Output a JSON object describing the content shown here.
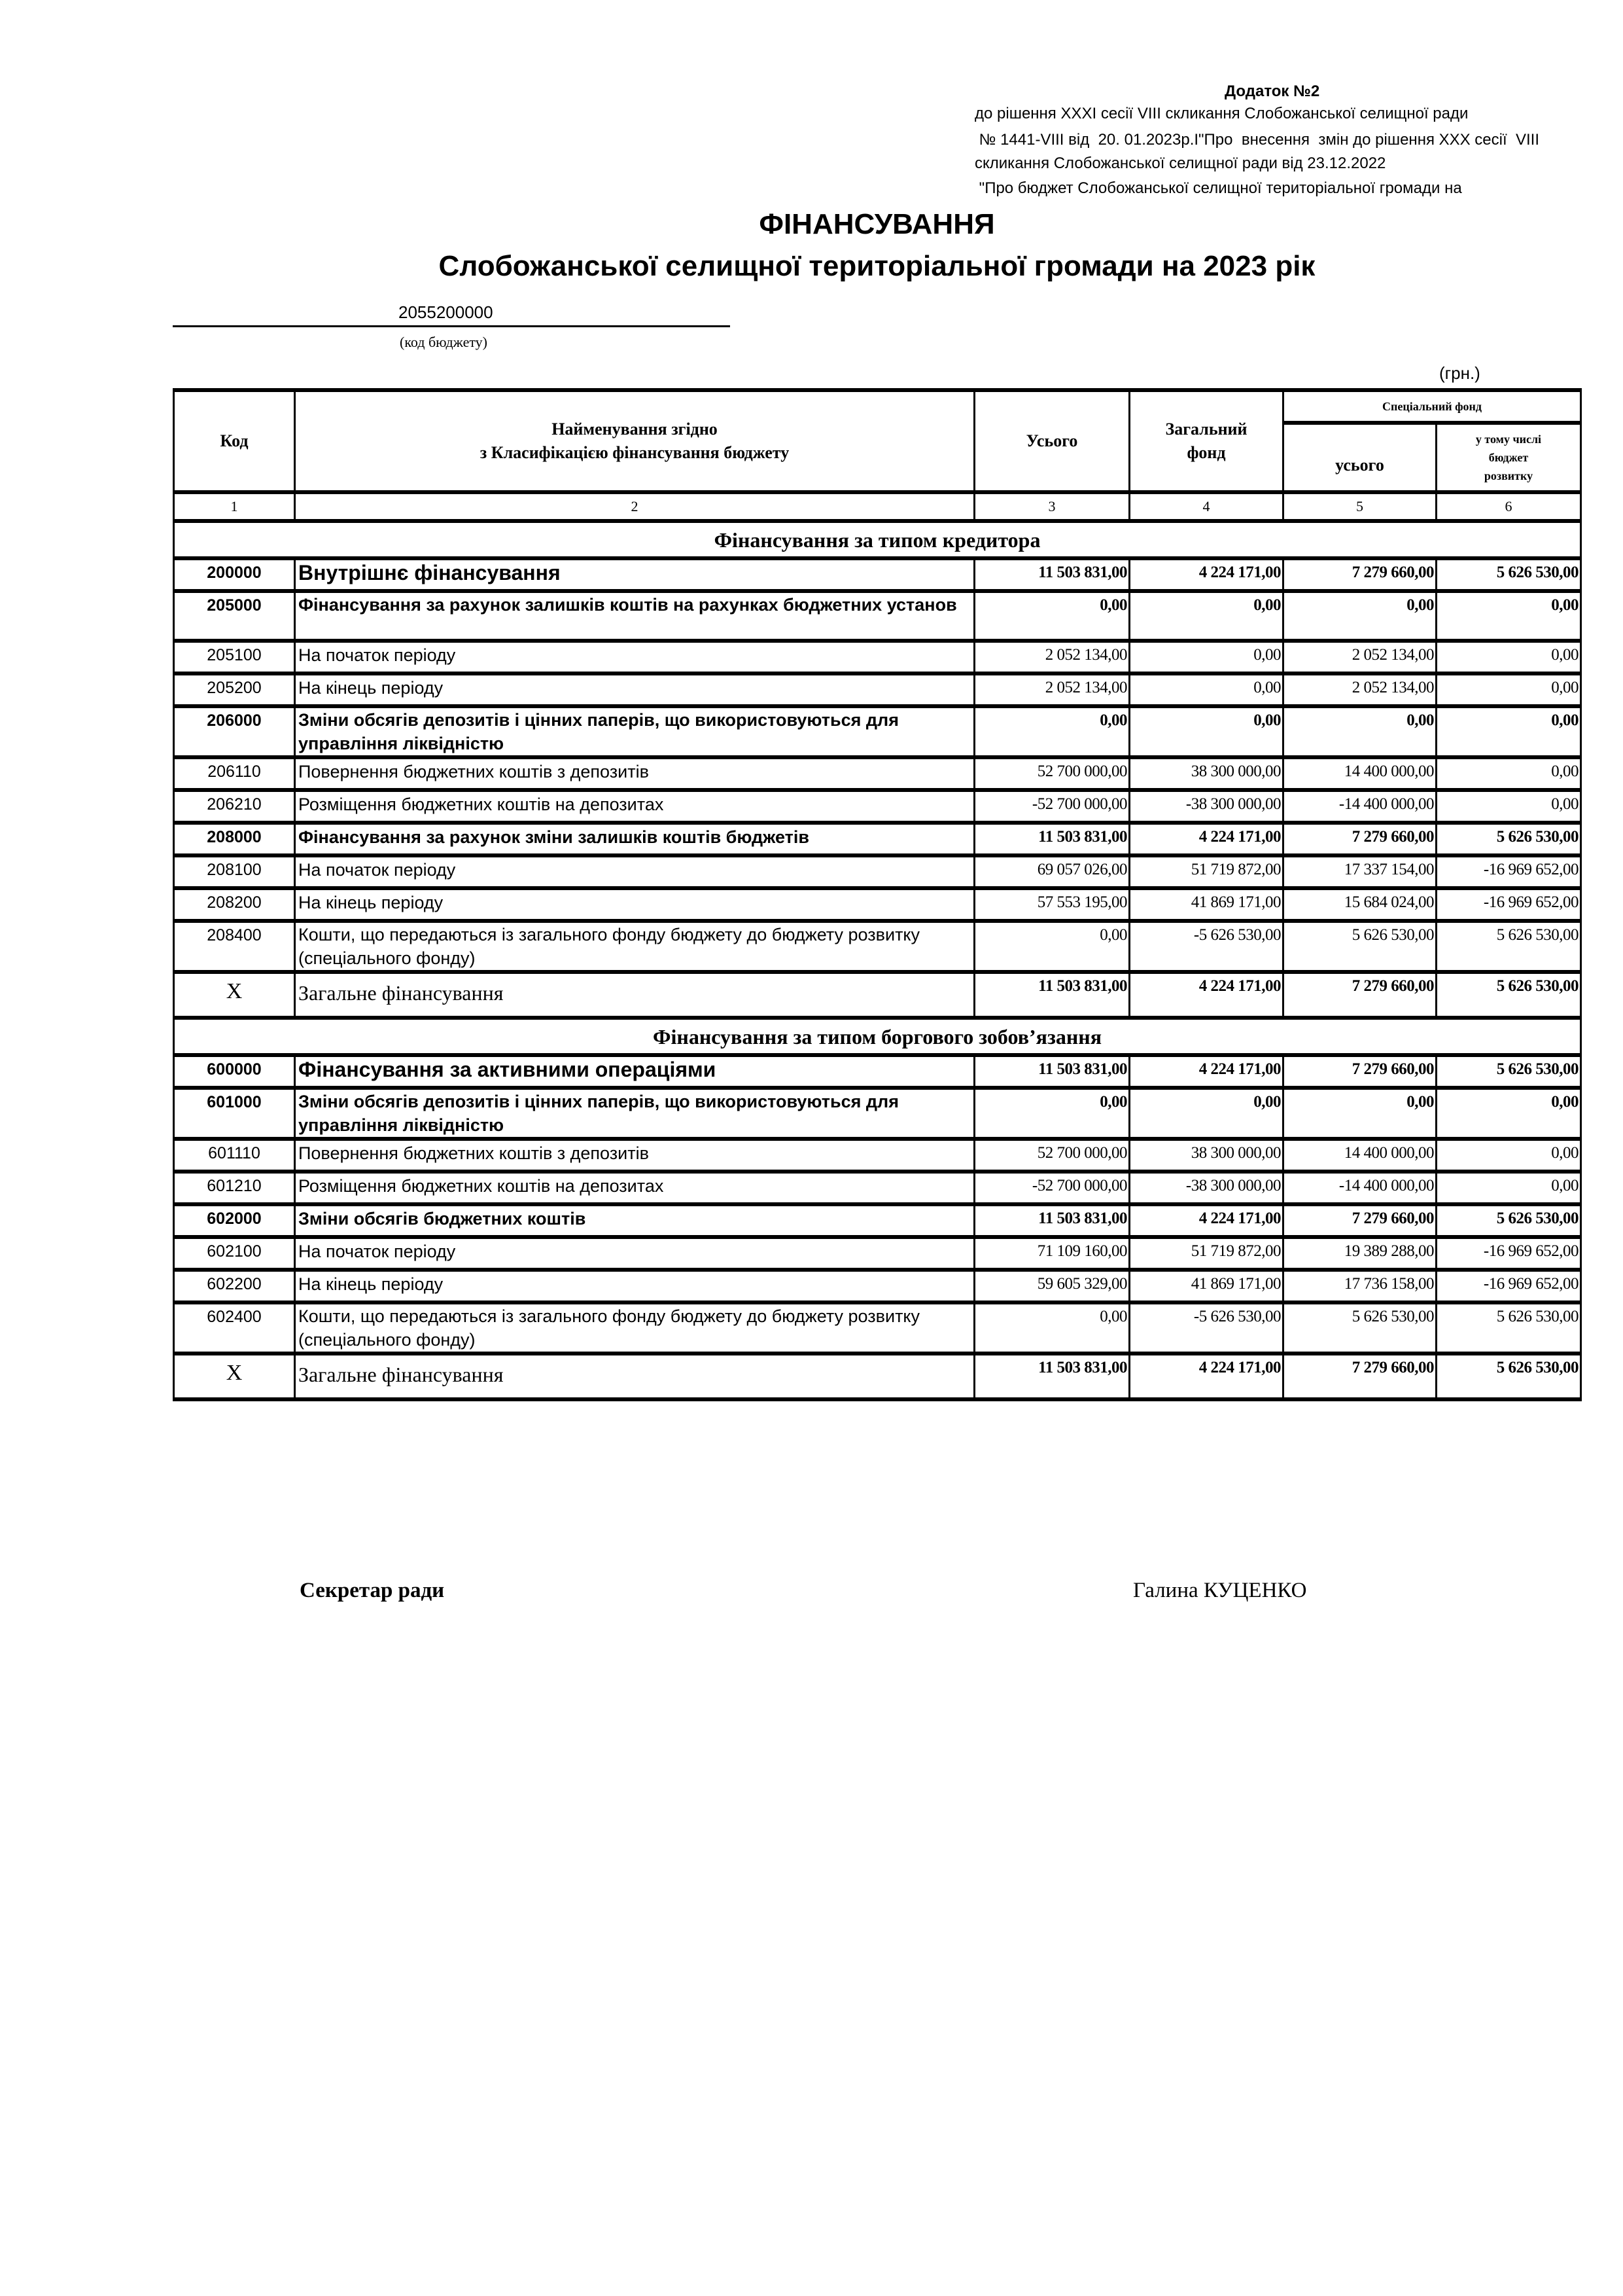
{
  "appendix": {
    "title": "Додаток №2",
    "lines": [
      "до рішення XXXI  сесії VIII скликання    Слобожанської селищної ради",
      " № 1441-VIII від  20. 01.2023р.І\"Про  внесення  змін до рішення XXX сесії  VIII",
      "скликання Слобожанської селищної ради від 23.12.2022",
      " \"Про бюджет Слобожанської селищної територіальної громади на"
    ]
  },
  "title": "ФІНАНСУВАННЯ",
  "subtitle": "Слобожанської селищної територіальної громади на 2023 рік",
  "budget_code": "2055200000",
  "budget_code_label": "(код бюджету)",
  "currency": "(грн.)",
  "table": {
    "headers": {
      "code": "Код",
      "name_line1": "Найменування згідно",
      "name_line2": "з Класифікацією фінансування бюджету",
      "total": "Усього",
      "general_line1": "Загальний",
      "general_line2": "фонд",
      "special": "Спеціальний фонд",
      "special_total": "усього",
      "dev_line1": "у тому числі",
      "dev_line2": "бюджет",
      "dev_line3": "розвитку"
    },
    "column_numbers": [
      "1",
      "2",
      "3",
      "4",
      "5",
      "6"
    ],
    "sections": [
      {
        "title": "Фінансування за типом кредитора",
        "rows": [
          {
            "code": "200000",
            "name": "Внутрішнє фінансування",
            "values": [
              "11 503 831,00",
              "4 224 171,00",
              "7 279 660,00",
              "5 626 530,00"
            ],
            "bold": true,
            "big": true
          },
          {
            "code": "205000",
            "name": "Фінансування за рахунок залишків коштів на рахунках бюджетних установ",
            "values": [
              "0,00",
              "0,00",
              "0,00",
              "0,00"
            ],
            "bold": true
          },
          {
            "code": "205100",
            "name": "На початок періоду",
            "values": [
              "2 052 134,00",
              "0,00",
              "2 052 134,00",
              "0,00"
            ]
          },
          {
            "code": "205200",
            "name": "На кінець періоду",
            "values": [
              "2 052 134,00",
              "0,00",
              "2 052 134,00",
              "0,00"
            ]
          },
          {
            "code": "206000",
            "name": "Зміни обсягів депозитів і цінних паперів, що використовуються для управління ліквідністю",
            "values": [
              "0,00",
              "0,00",
              "0,00",
              "0,00"
            ],
            "bold": true
          },
          {
            "code": "206110",
            "name": "Повернення бюджетних коштів з депозитів",
            "values": [
              "52 700 000,00",
              "38 300 000,00",
              "14 400 000,00",
              "0,00"
            ]
          },
          {
            "code": "206210",
            "name": "Розміщення бюджетних коштів на депозитах",
            "values": [
              "-52 700 000,00",
              "-38 300 000,00",
              "-14 400 000,00",
              "0,00"
            ]
          },
          {
            "code": "208000",
            "name": "Фінансування за рахунок зміни залишків коштів бюджетів",
            "values": [
              "11 503 831,00",
              "4 224 171,00",
              "7 279 660,00",
              "5 626 530,00"
            ],
            "bold": true
          },
          {
            "code": "208100",
            "name": "На початок періоду",
            "values": [
              "69 057 026,00",
              "51 719 872,00",
              "17 337 154,00",
              "-16 969 652,00"
            ]
          },
          {
            "code": "208200",
            "name": "На кінець періоду",
            "values": [
              "57 553 195,00",
              "41 869 171,00",
              "15 684 024,00",
              "-16 969 652,00"
            ]
          },
          {
            "code": "208400",
            "name": "Кошти, що передаються із загального фонду бюджету до бюджету розвитку (спеціального фонду)",
            "values": [
              "0,00",
              "-5 626 530,00",
              "5 626 530,00",
              "5 626 530,00"
            ]
          },
          {
            "code": "X",
            "name": "Загальне фінансування",
            "values": [
              "11 503 831,00",
              "4 224 171,00",
              "7 279 660,00",
              "5 626 530,00"
            ],
            "total": true
          }
        ]
      },
      {
        "title": "Фінансування за типом боргового зобов’язання",
        "rows": [
          {
            "code": "600000",
            "name": "Фінансування за активними операціями",
            "values": [
              "11 503 831,00",
              "4 224 171,00",
              "7 279 660,00",
              "5 626 530,00"
            ],
            "bold": true,
            "big": true
          },
          {
            "code": "601000",
            "name": "Зміни обсягів депозитів і цінних паперів, що використовуються для управління ліквідністю",
            "values": [
              "0,00",
              "0,00",
              "0,00",
              "0,00"
            ],
            "bold": true
          },
          {
            "code": "601110",
            "name": "Повернення бюджетних коштів з депозитів",
            "values": [
              "52 700 000,00",
              "38 300 000,00",
              "14 400 000,00",
              "0,00"
            ]
          },
          {
            "code": "601210",
            "name": "Розміщення бюджетних коштів на депозитах",
            "values": [
              "-52 700 000,00",
              "-38 300 000,00",
              "-14 400 000,00",
              "0,00"
            ]
          },
          {
            "code": "602000",
            "name": "Зміни обсягів бюджетних коштів",
            "values": [
              "11 503 831,00",
              "4 224 171,00",
              "7 279 660,00",
              "5 626 530,00"
            ],
            "bold": true
          },
          {
            "code": "602100",
            "name": "На початок періоду",
            "values": [
              "71 109 160,00",
              "51 719 872,00",
              "19 389 288,00",
              "-16 969 652,00"
            ]
          },
          {
            "code": "602200",
            "name": "На кінець періоду",
            "values": [
              "59 605 329,00",
              "41 869 171,00",
              "17 736 158,00",
              "-16 969 652,00"
            ]
          },
          {
            "code": "602400",
            "name": "Кошти, що передаються із загального фонду бюджету до бюджету розвитку (спеціального фонду)",
            "values": [
              "0,00",
              "-5 626 530,00",
              "5 626 530,00",
              "5 626 530,00"
            ]
          },
          {
            "code": "X",
            "name": "Загальне фінансування",
            "values": [
              "11 503 831,00",
              "4 224 171,00",
              "7 279 660,00",
              "5 626 530,00"
            ],
            "total": true
          }
        ]
      }
    ]
  },
  "signature": {
    "position": "Секретар ради",
    "name": "Галина КУЦЕНКО"
  }
}
